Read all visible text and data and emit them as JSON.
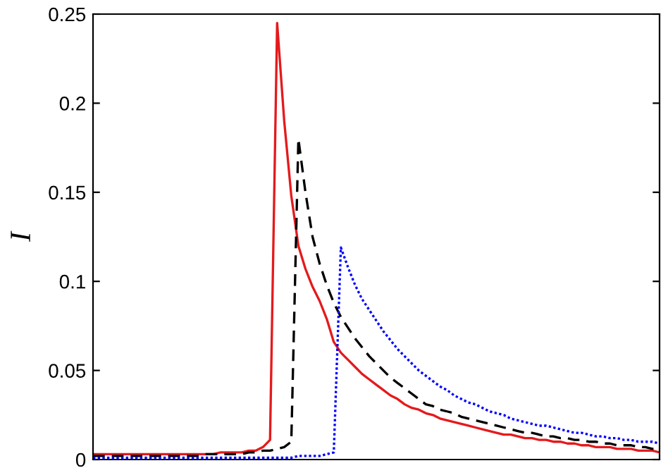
{
  "chart_data": {
    "type": "line",
    "ylabel": "I",
    "ylim": [
      0,
      0.25
    ],
    "categories": [
      null,
      null,
      null,
      null,
      null,
      null,
      null,
      null,
      null,
      null,
      null,
      null,
      null,
      null,
      null,
      null,
      null,
      null,
      null,
      null,
      null,
      null,
      null,
      null,
      null,
      null,
      null,
      null,
      null,
      null,
      null,
      null,
      null,
      null,
      null,
      null,
      null,
      null,
      null,
      null,
      null,
      null,
      null,
      null,
      null,
      null,
      null,
      null,
      null,
      null,
      null,
      null,
      null,
      null,
      null,
      null,
      null,
      null,
      null,
      null,
      null,
      null,
      null,
      null,
      null,
      null,
      null,
      null,
      null,
      null,
      null,
      null,
      null,
      null,
      null,
      null,
      null,
      null,
      null,
      null,
      null
    ],
    "yticks": [
      0,
      0.05,
      0.1,
      0.15,
      0.2,
      0.25
    ],
    "tick_labels": "y",
    "series": [
      {
        "color": "#e41a1c",
        "line_style": "solid",
        "values": [
          0.003,
          0.003,
          0.003,
          0.003,
          0.003,
          0.003,
          0.003,
          0.003,
          0.003,
          0.003,
          0.003,
          0.003,
          0.003,
          0.003,
          0.003,
          0.003,
          0.003,
          0.003,
          0.004,
          0.004,
          0.004,
          0.004,
          0.005,
          0.005,
          0.007,
          0.011,
          0.245,
          0.19,
          0.148,
          0.12,
          0.107,
          0.097,
          0.089,
          0.079,
          0.066,
          0.06,
          0.056,
          0.052,
          0.048,
          0.045,
          0.042,
          0.039,
          0.036,
          0.034,
          0.031,
          0.029,
          0.028,
          0.026,
          0.025,
          0.023,
          0.022,
          0.021,
          0.02,
          0.019,
          0.018,
          0.017,
          0.016,
          0.015,
          0.014,
          0.014,
          0.013,
          0.012,
          0.012,
          0.011,
          0.011,
          0.01,
          0.01,
          0.009,
          0.009,
          0.008,
          0.008,
          0.007,
          0.007,
          0.007,
          0.006,
          0.006,
          0.006,
          0.005,
          0.005,
          0.005,
          0.004
        ]
      },
      {
        "color": "#000000",
        "line_style": "dashed",
        "values": [
          0.002,
          0.002,
          0.002,
          0.002,
          0.002,
          0.002,
          0.002,
          0.002,
          0.002,
          0.002,
          0.002,
          0.002,
          0.002,
          0.002,
          0.002,
          0.002,
          0.003,
          0.003,
          0.003,
          0.003,
          0.003,
          0.003,
          0.004,
          0.004,
          0.005,
          0.005,
          0.006,
          0.007,
          0.01,
          0.18,
          0.15,
          0.125,
          0.11,
          0.098,
          0.088,
          0.08,
          0.074,
          0.068,
          0.063,
          0.058,
          0.054,
          0.05,
          0.046,
          0.043,
          0.04,
          0.037,
          0.034,
          0.031,
          0.03,
          0.028,
          0.027,
          0.026,
          0.024,
          0.023,
          0.022,
          0.021,
          0.02,
          0.019,
          0.018,
          0.017,
          0.016,
          0.015,
          0.015,
          0.014,
          0.013,
          0.013,
          0.012,
          0.012,
          0.011,
          0.011,
          0.01,
          0.01,
          0.009,
          0.009,
          0.008,
          0.008,
          0.008,
          0.007,
          0.007,
          0.006,
          0.006
        ]
      },
      {
        "color": "#0000ff",
        "line_style": "dotted",
        "values": [
          0.001,
          0.001,
          0.001,
          0.001,
          0.001,
          0.001,
          0.001,
          0.001,
          0.001,
          0.001,
          0.001,
          0.001,
          0.001,
          0.001,
          0.001,
          0.001,
          0.001,
          0.001,
          0.001,
          0.001,
          0.001,
          0.001,
          0.001,
          0.001,
          0.001,
          0.001,
          0.001,
          0.001,
          0.001,
          0.002,
          0.002,
          0.002,
          0.002,
          0.003,
          0.004,
          0.119,
          0.108,
          0.098,
          0.09,
          0.084,
          0.078,
          0.072,
          0.067,
          0.062,
          0.058,
          0.054,
          0.05,
          0.047,
          0.044,
          0.041,
          0.039,
          0.036,
          0.034,
          0.032,
          0.031,
          0.029,
          0.027,
          0.026,
          0.025,
          0.023,
          0.022,
          0.021,
          0.02,
          0.019,
          0.019,
          0.018,
          0.017,
          0.016,
          0.015,
          0.015,
          0.014,
          0.013,
          0.013,
          0.012,
          0.012,
          0.011,
          0.011,
          0.01,
          0.01,
          0.01,
          0.009
        ]
      }
    ]
  }
}
